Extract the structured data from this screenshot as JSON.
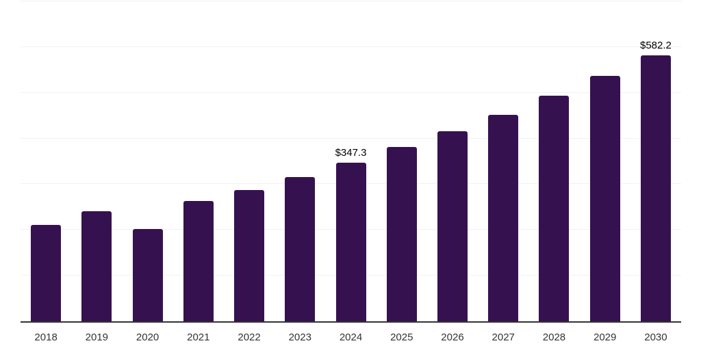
{
  "chart_data": {
    "type": "bar",
    "title": "",
    "xlabel": "",
    "ylabel": "",
    "categories": [
      "2018",
      "2019",
      "2020",
      "2021",
      "2022",
      "2023",
      "2024",
      "2025",
      "2026",
      "2027",
      "2028",
      "2029",
      "2030"
    ],
    "values": [
      211.5,
      241.4,
      202.5,
      262.9,
      287.3,
      316.3,
      347.3,
      381.5,
      415.8,
      452.3,
      493.7,
      537.6,
      582.2
    ],
    "annotations": [
      {
        "category": "2024",
        "text": "$347.3"
      },
      {
        "category": "2030",
        "text": "$582.2"
      }
    ],
    "ylim": [
      0,
      700
    ],
    "gridline_step": 100,
    "grid": true,
    "legend_position": "none",
    "colors": {
      "bar": "#361150",
      "gridline": "#f1f1f1",
      "axis_line": "#333333",
      "tick_label": "#333333",
      "data_label": "#000000"
    }
  }
}
